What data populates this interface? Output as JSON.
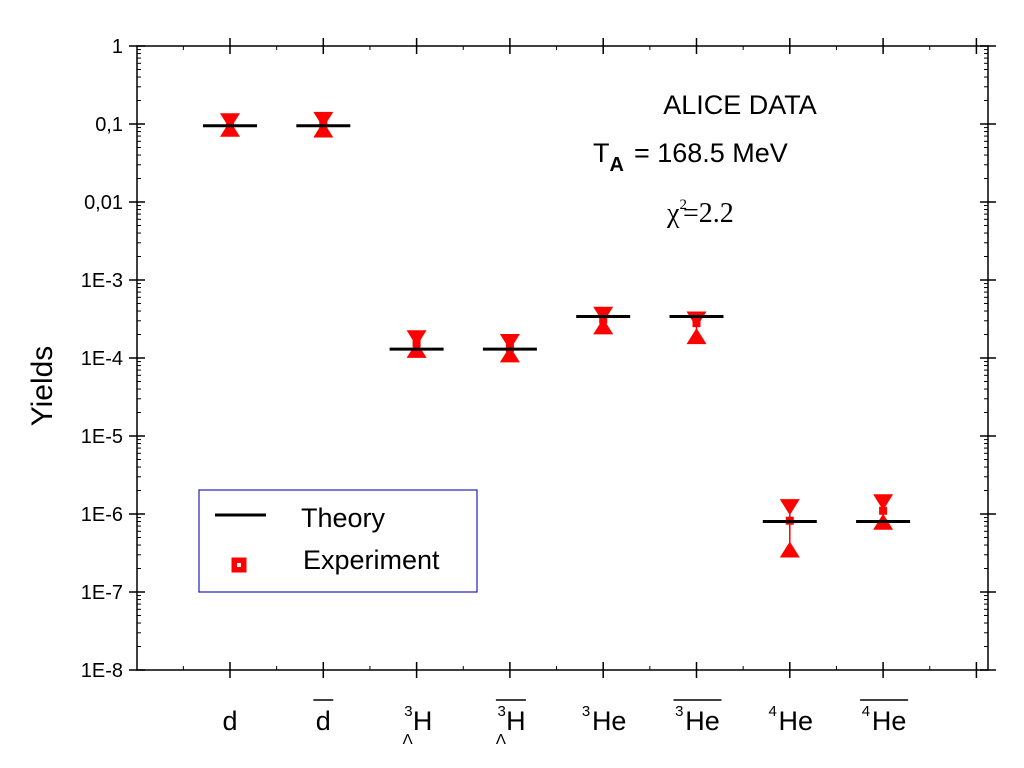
{
  "chart_data": {
    "type": "scatter",
    "y_scale": "log",
    "ylim": [
      1e-08,
      1
    ],
    "ylabel": "Yields",
    "y_tick_labels": [
      "1",
      "0,1",
      "0,01",
      "1E-3",
      "1E-4",
      "1E-5",
      "1E-6",
      "1E-7",
      "1E-8"
    ],
    "categories": [
      {
        "base": "d",
        "sup": "",
        "sub": "",
        "bar": false
      },
      {
        "base": "d",
        "sup": "",
        "sub": "",
        "bar": true
      },
      {
        "base": "H",
        "sup": "3",
        "sub": "Λ",
        "bar": false
      },
      {
        "base": "H",
        "sup": "3",
        "sub": "Λ",
        "bar": true
      },
      {
        "base": "He",
        "sup": "3",
        "sub": "",
        "bar": false
      },
      {
        "base": "He",
        "sup": "3",
        "sub": "",
        "bar": true
      },
      {
        "base": "He",
        "sup": "4",
        "sub": "",
        "bar": false
      },
      {
        "base": "He",
        "sup": "4",
        "sub": "",
        "bar": true
      }
    ],
    "series": [
      {
        "name": "Theory",
        "marker": "line",
        "color": "#000000",
        "values": [
          0.095,
          0.095,
          0.00013,
          0.00013,
          0.00034,
          0.00034,
          8e-07,
          8e-07
        ]
      },
      {
        "name": "Experiment",
        "marker": "square",
        "color": "#ff0000",
        "values": [
          0.1,
          0.1,
          0.000155,
          0.000135,
          0.00031,
          0.00028,
          8.2e-07,
          1.1e-06
        ],
        "err_low": [
          0.082,
          0.08,
          0.00012,
          0.000105,
          0.00024,
          0.00018,
          3.3e-07,
          7.5e-07
        ],
        "err_high": [
          0.115,
          0.12,
          0.00019,
          0.00017,
          0.00038,
          0.00033,
          1.3e-06,
          1.5e-06
        ]
      }
    ],
    "annotations": {
      "line1": "ALICE DATA",
      "line2_T": "T",
      "line2_sub": "A",
      "line2_rest": "= 168.5 MeV",
      "line3_chi": "χ",
      "line3_sup": "2",
      "line3_rest": "=2.2"
    },
    "legend": {
      "position": "bottom-left",
      "entries": [
        {
          "name": "Theory",
          "marker": "line",
          "color": "#000000"
        },
        {
          "name": "Experiment",
          "marker": "square",
          "color": "#ff0000"
        }
      ]
    },
    "grid": false
  }
}
